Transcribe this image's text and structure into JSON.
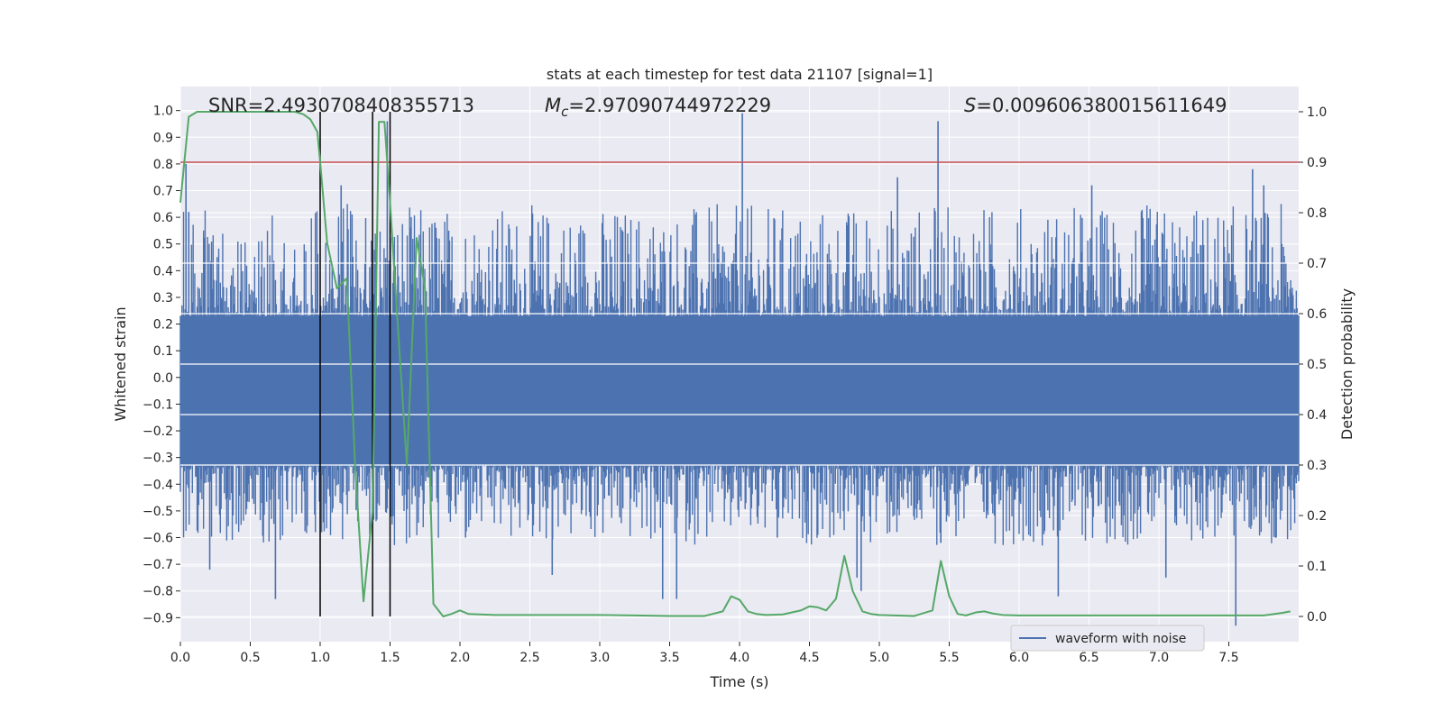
{
  "chart_data": {
    "type": "line",
    "title": "stats at each timestep for test data 21107 [signal=1]",
    "xlabel": "Time (s)",
    "ylabel_left": "Whitened strain",
    "ylabel_right": "Detection probability",
    "xlim": [
      0.0,
      8.0
    ],
    "ylim_left": [
      -0.99,
      1.09
    ],
    "ylim_right": [
      -0.05,
      1.05
    ],
    "x_ticks": [
      0.0,
      0.5,
      1.0,
      1.5,
      2.0,
      2.5,
      3.0,
      3.5,
      4.0,
      4.5,
      5.0,
      5.5,
      6.0,
      6.5,
      7.0,
      7.5
    ],
    "x_tick_labels": [
      "0.0",
      "0.5",
      "1.0",
      "1.5",
      "2.0",
      "2.5",
      "3.0",
      "3.5",
      "4.0",
      "4.5",
      "5.0",
      "5.5",
      "6.0",
      "6.5",
      "7.0",
      "7.5"
    ],
    "y_left_ticks": [
      -0.9,
      -0.8,
      -0.7,
      -0.6,
      -0.5,
      -0.4,
      -0.3,
      -0.2,
      -0.1,
      0.0,
      0.1,
      0.2,
      0.3,
      0.4,
      0.5,
      0.6,
      0.7,
      0.8,
      0.9,
      1.0
    ],
    "y_left_tick_labels": [
      "−0.9",
      "−0.8",
      "−0.7",
      "−0.6",
      "−0.5",
      "−0.4",
      "−0.3",
      "−0.2",
      "−0.1",
      "0.0",
      "0.1",
      "0.2",
      "0.3",
      "0.4",
      "0.5",
      "0.6",
      "0.7",
      "0.8",
      "0.9",
      "1.0"
    ],
    "y_right_ticks": [
      0.0,
      0.1,
      0.2,
      0.3,
      0.4,
      0.5,
      0.6,
      0.7,
      0.8,
      0.9,
      1.0
    ],
    "y_right_tick_labels": [
      "0.0",
      "0.1",
      "0.2",
      "0.3",
      "0.4",
      "0.5",
      "0.6",
      "0.7",
      "0.8",
      "0.9",
      "1.0"
    ],
    "annotations": {
      "snr": "SNR=2.4930708408355713",
      "mc_symbol": "M",
      "mc_sub": "c",
      "mc_value": "=2.97090744972229",
      "s_symbol": "S",
      "s_value": "=0.009606380015611649"
    },
    "legend": {
      "position": "lower-right",
      "entries": [
        "waveform with noise"
      ]
    },
    "threshold": {
      "value_right": 0.9,
      "color": "#c44e52"
    },
    "vertical_lines": {
      "x": [
        1.0,
        1.375,
        1.5
      ],
      "color": "#000000"
    },
    "waveform": {
      "name": "waveform with noise",
      "color": "#4c72b0",
      "dense_band": [
        -0.33,
        0.23
      ],
      "spikes": [
        {
          "t": 0.04,
          "y": 0.8
        },
        {
          "t": 0.06,
          "y": 0.62
        },
        {
          "t": 0.21,
          "y": -0.72
        },
        {
          "t": 0.68,
          "y": -0.83
        },
        {
          "t": 1.01,
          "y": -0.58
        },
        {
          "t": 1.15,
          "y": 0.72
        },
        {
          "t": 1.48,
          "y": 0.96
        },
        {
          "t": 1.52,
          "y": -0.52
        },
        {
          "t": 1.82,
          "y": 0.58
        },
        {
          "t": 2.04,
          "y": -0.6
        },
        {
          "t": 2.66,
          "y": -0.74
        },
        {
          "t": 3.45,
          "y": -0.83
        },
        {
          "t": 3.55,
          "y": -0.83
        },
        {
          "t": 4.02,
          "y": 0.99
        },
        {
          "t": 4.27,
          "y": -0.6
        },
        {
          "t": 4.84,
          "y": -0.75
        },
        {
          "t": 4.87,
          "y": -0.8
        },
        {
          "t": 5.13,
          "y": 0.75
        },
        {
          "t": 5.42,
          "y": 0.96
        },
        {
          "t": 5.44,
          "y": -0.62
        },
        {
          "t": 6.28,
          "y": -0.82
        },
        {
          "t": 6.52,
          "y": 0.72
        },
        {
          "t": 7.05,
          "y": -0.75
        },
        {
          "t": 7.55,
          "y": -0.93
        },
        {
          "t": 7.67,
          "y": 0.78
        },
        {
          "t": 7.75,
          "y": 0.72
        }
      ]
    },
    "detection_probability": {
      "name": "detection probability",
      "color": "#55a868",
      "x": [
        0.0,
        0.06,
        0.12,
        0.25,
        0.5,
        0.75,
        0.82,
        0.88,
        0.93,
        0.98,
        1.0,
        1.05,
        1.12,
        1.19,
        1.25,
        1.31,
        1.375,
        1.42,
        1.46,
        1.5,
        1.55,
        1.62,
        1.69,
        1.75,
        1.81,
        1.88,
        1.94,
        2.0,
        2.06,
        2.25,
        2.5,
        2.75,
        3.0,
        3.25,
        3.5,
        3.75,
        3.88,
        3.94,
        4.0,
        4.06,
        4.12,
        4.19,
        4.31,
        4.44,
        4.5,
        4.56,
        4.62,
        4.69,
        4.75,
        4.81,
        4.88,
        4.94,
        5.0,
        5.25,
        5.38,
        5.44,
        5.5,
        5.56,
        5.62,
        5.69,
        5.75,
        5.81,
        5.88,
        6.0,
        6.5,
        7.0,
        7.5,
        7.75,
        7.88,
        7.94
      ],
      "values": [
        0.82,
        0.99,
        1.0,
        1.0,
        1.0,
        1.0,
        1.0,
        0.995,
        0.985,
        0.96,
        0.9,
        0.74,
        0.65,
        0.67,
        0.3,
        0.03,
        0.21,
        0.98,
        0.98,
        0.82,
        0.6,
        0.3,
        0.75,
        0.65,
        0.025,
        0.0,
        0.005,
        0.012,
        0.005,
        0.003,
        0.003,
        0.003,
        0.003,
        0.002,
        0.001,
        0.001,
        0.01,
        0.04,
        0.033,
        0.01,
        0.005,
        0.003,
        0.004,
        0.012,
        0.02,
        0.018,
        0.012,
        0.035,
        0.12,
        0.05,
        0.01,
        0.005,
        0.003,
        0.001,
        0.012,
        0.11,
        0.04,
        0.005,
        0.002,
        0.008,
        0.01,
        0.006,
        0.003,
        0.002,
        0.002,
        0.002,
        0.002,
        0.002,
        0.007,
        0.01
      ]
    }
  }
}
